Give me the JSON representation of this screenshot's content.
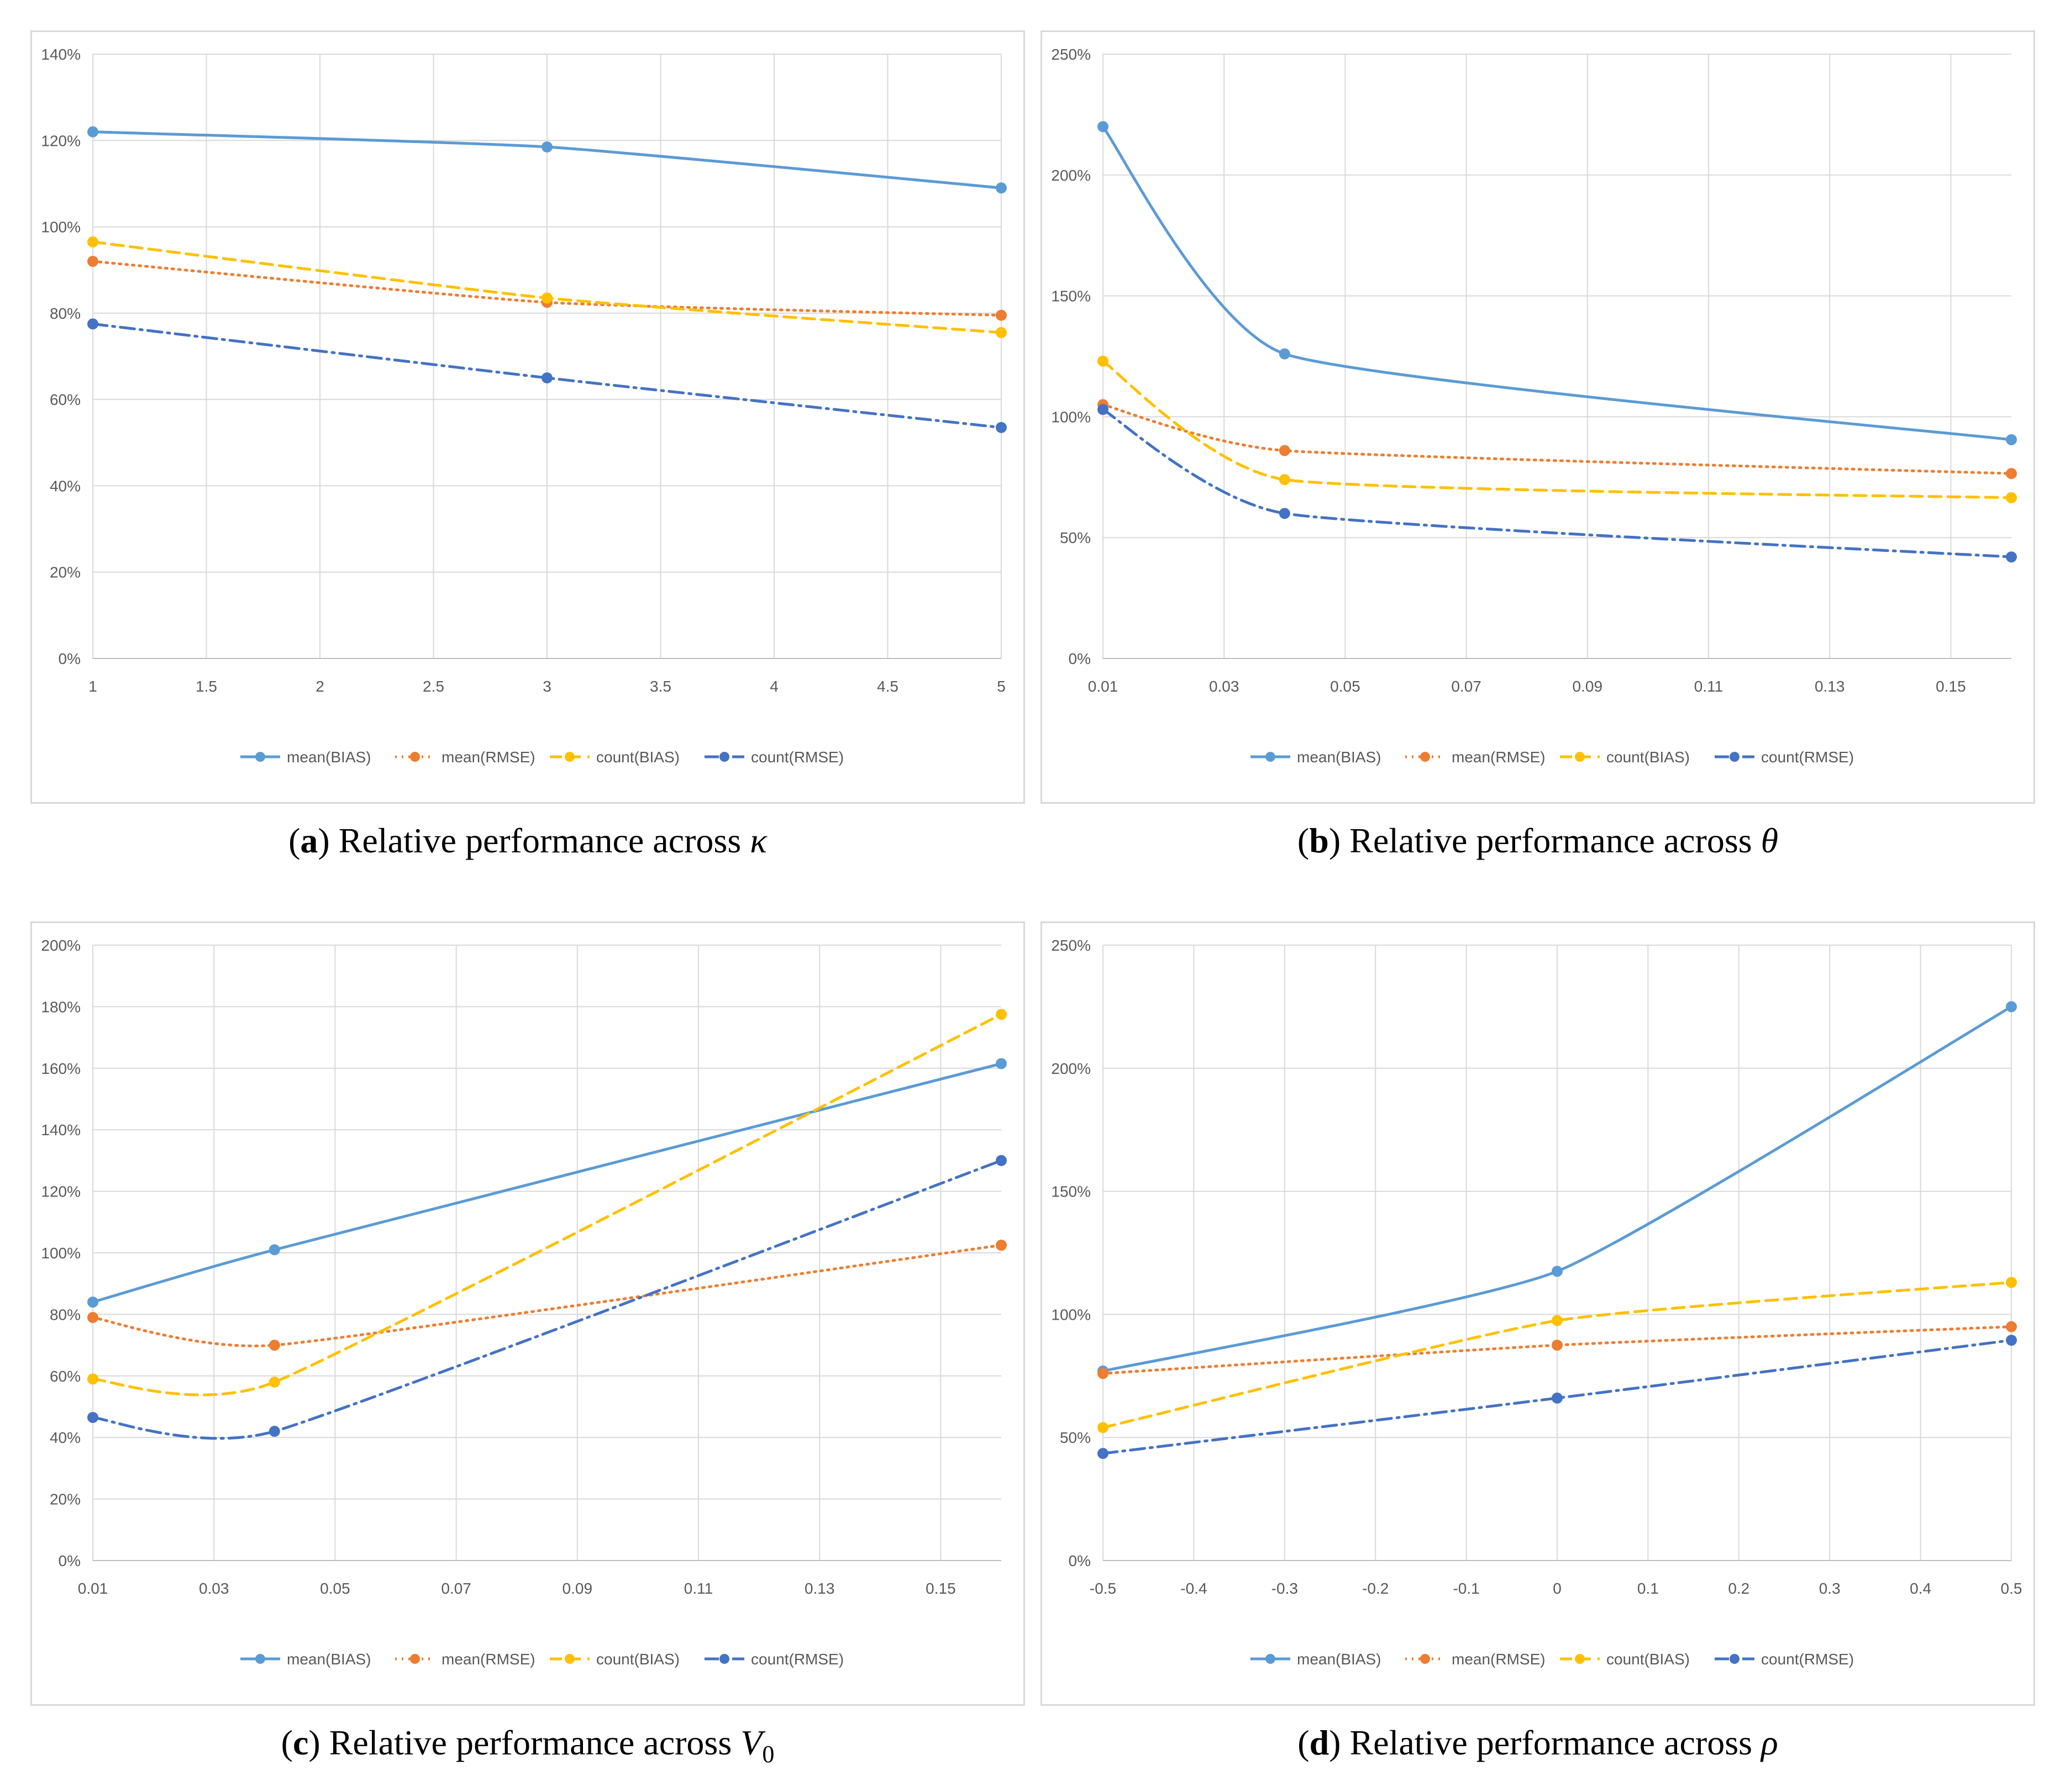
{
  "legend_labels": [
    "mean(BIAS)",
    "mean(RMSE)",
    "count(BIAS)",
    "count(RMSE)"
  ],
  "series_colors": {
    "mean(BIAS)": "#5b9bd5",
    "mean(RMSE)": "#ed7d31",
    "count(BIAS)": "#ffc000",
    "count(RMSE)": "#4472c4"
  },
  "captions": [
    {
      "letter": "a",
      "text": "Relative performance across",
      "symbol": "κ",
      "subscript": ""
    },
    {
      "letter": "b",
      "text": "Relative performance across",
      "symbol": "θ",
      "subscript": ""
    },
    {
      "letter": "c",
      "text": "Relative performance across",
      "symbol": "V",
      "subscript": "0"
    },
    {
      "letter": "d",
      "text": "Relative performance across",
      "symbol": "ρ",
      "subscript": ""
    }
  ],
  "chart_data": [
    {
      "type": "line",
      "title": "Relative performance across κ",
      "x": [
        1,
        3,
        5
      ],
      "xlim": [
        1,
        5
      ],
      "xticks": [
        "1",
        "1.5",
        "2",
        "2.5",
        "3",
        "3.5",
        "4",
        "4.5",
        "5"
      ],
      "ylim": [
        0,
        140
      ],
      "yticks": [
        "0%",
        "20%",
        "40%",
        "60%",
        "80%",
        "100%",
        "120%",
        "140%"
      ],
      "ylabel_unit": "%",
      "series": [
        {
          "name": "mean(BIAS)",
          "values": [
            122,
            118.5,
            109
          ]
        },
        {
          "name": "mean(RMSE)",
          "values": [
            92,
            82.5,
            79.5
          ]
        },
        {
          "name": "count(BIAS)",
          "values": [
            96.5,
            83.5,
            75.5
          ]
        },
        {
          "name": "count(RMSE)",
          "values": [
            77.5,
            65,
            53.5
          ]
        }
      ]
    },
    {
      "type": "line",
      "title": "Relative performance across θ",
      "x": [
        0.01,
        0.04,
        0.16
      ],
      "xlim": [
        0.01,
        0.16
      ],
      "xticks": [
        "0.01",
        "0.03",
        "0.05",
        "0.07",
        "0.09",
        "0.11",
        "0.13",
        "0.15"
      ],
      "ylim": [
        0,
        250
      ],
      "yticks": [
        "0%",
        "50%",
        "100%",
        "150%",
        "200%",
        "250%"
      ],
      "ylabel_unit": "%",
      "series": [
        {
          "name": "mean(BIAS)",
          "values": [
            220,
            126,
            90.5
          ]
        },
        {
          "name": "mean(RMSE)",
          "values": [
            105,
            86,
            76.5
          ]
        },
        {
          "name": "count(BIAS)",
          "values": [
            123,
            74,
            66.5
          ]
        },
        {
          "name": "count(RMSE)",
          "values": [
            103,
            60,
            42
          ]
        }
      ]
    },
    {
      "type": "line",
      "title": "Relative performance across V0",
      "x": [
        0.01,
        0.04,
        0.16
      ],
      "xlim": [
        0.01,
        0.16
      ],
      "xticks": [
        "0.01",
        "0.03",
        "0.05",
        "0.07",
        "0.09",
        "0.11",
        "0.13",
        "0.15"
      ],
      "ylim": [
        0,
        200
      ],
      "yticks": [
        "0%",
        "20%",
        "40%",
        "60%",
        "80%",
        "100%",
        "120%",
        "140%",
        "160%",
        "180%",
        "200%"
      ],
      "ylabel_unit": "%",
      "series": [
        {
          "name": "mean(BIAS)",
          "values": [
            84,
            101,
            161.5
          ]
        },
        {
          "name": "mean(RMSE)",
          "values": [
            79,
            70,
            102.5
          ]
        },
        {
          "name": "count(BIAS)",
          "values": [
            59,
            58,
            177.5
          ]
        },
        {
          "name": "count(RMSE)",
          "values": [
            46.5,
            42,
            130
          ]
        }
      ]
    },
    {
      "type": "line",
      "title": "Relative performance across ρ",
      "x": [
        -0.5,
        0,
        0.5
      ],
      "xlim": [
        -0.5,
        0.5
      ],
      "xticks": [
        "-0.5",
        "-0.4",
        "-0.3",
        "-0.2",
        "-0.1",
        "0",
        "0.1",
        "0.2",
        "0.3",
        "0.4",
        "0.5"
      ],
      "ylim": [
        0,
        250
      ],
      "yticks": [
        "0%",
        "50%",
        "100%",
        "150%",
        "200%",
        "250%"
      ],
      "ylabel_unit": "%",
      "series": [
        {
          "name": "mean(BIAS)",
          "values": [
            77,
            117.5,
            225
          ]
        },
        {
          "name": "mean(RMSE)",
          "values": [
            76,
            87.5,
            95
          ]
        },
        {
          "name": "count(BIAS)",
          "values": [
            54,
            97.5,
            113
          ]
        },
        {
          "name": "count(RMSE)",
          "values": [
            43.5,
            66,
            89.5
          ]
        }
      ]
    }
  ]
}
